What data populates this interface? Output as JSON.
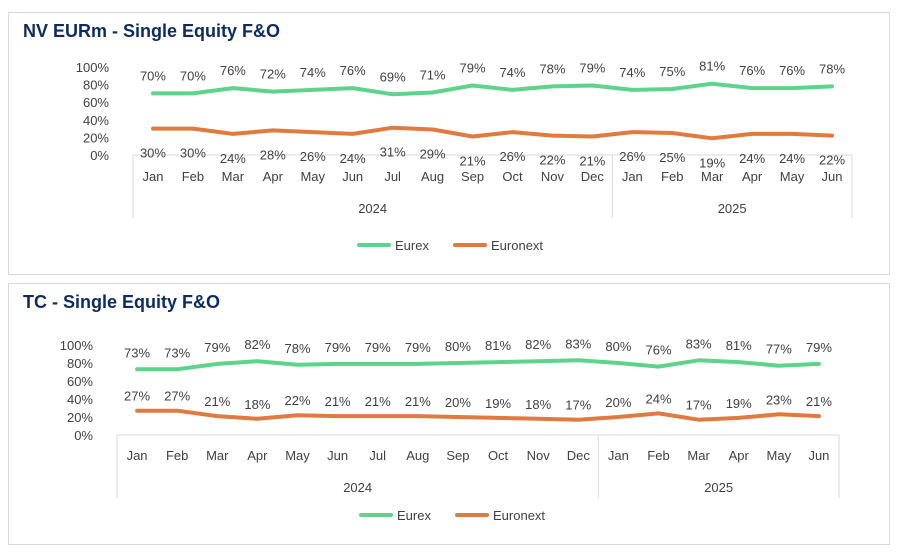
{
  "chart_data": [
    {
      "type": "line",
      "title": "NV EURm - Single Equity F&O",
      "categories": [
        "Jan",
        "Feb",
        "Mar",
        "Apr",
        "May",
        "Jun",
        "Jul",
        "Aug",
        "Sep",
        "Oct",
        "Nov",
        "Dec",
        "Jan",
        "Feb",
        "Mar",
        "Apr",
        "May",
        "Jun"
      ],
      "groups": [
        {
          "label": "2024",
          "count": 12
        },
        {
          "label": "2025",
          "count": 6
        }
      ],
      "series": [
        {
          "name": "Eurex",
          "color": "#5ed38c",
          "values": [
            70,
            70,
            76,
            72,
            74,
            76,
            69,
            71,
            79,
            74,
            78,
            79,
            74,
            75,
            81,
            76,
            76,
            78
          ]
        },
        {
          "name": "Euronext",
          "color": "#e07a3f",
          "values": [
            30,
            30,
            24,
            28,
            26,
            24,
            31,
            29,
            21,
            26,
            22,
            21,
            26,
            25,
            19,
            24,
            24,
            22
          ]
        }
      ],
      "yticks": [
        "0%",
        "20%",
        "40%",
        "60%",
        "80%",
        "100%"
      ],
      "ylim": [
        0,
        100
      ],
      "legend": "bottom",
      "grid": false
    },
    {
      "type": "line",
      "title": "TC - Single Equity F&O",
      "categories": [
        "Jan",
        "Feb",
        "Mar",
        "Apr",
        "May",
        "Jun",
        "Jul",
        "Aug",
        "Sep",
        "Oct",
        "Nov",
        "Dec",
        "Jan",
        "Feb",
        "Mar",
        "Apr",
        "May",
        "Jun"
      ],
      "groups": [
        {
          "label": "2024",
          "count": 12
        },
        {
          "label": "2025",
          "count": 6
        }
      ],
      "series": [
        {
          "name": "Eurex",
          "color": "#5ed38c",
          "values": [
            73,
            73,
            79,
            82,
            78,
            79,
            79,
            79,
            80,
            81,
            82,
            83,
            80,
            76,
            83,
            81,
            77,
            79
          ]
        },
        {
          "name": "Euronext",
          "color": "#e07a3f",
          "values": [
            27,
            27,
            21,
            18,
            22,
            21,
            21,
            21,
            20,
            19,
            18,
            17,
            20,
            24,
            17,
            19,
            23,
            21
          ]
        }
      ],
      "yticks": [
        "0%",
        "20%",
        "40%",
        "60%",
        "80%",
        "100%"
      ],
      "ylim": [
        0,
        100
      ],
      "legend": "bottom",
      "grid": false
    }
  ]
}
